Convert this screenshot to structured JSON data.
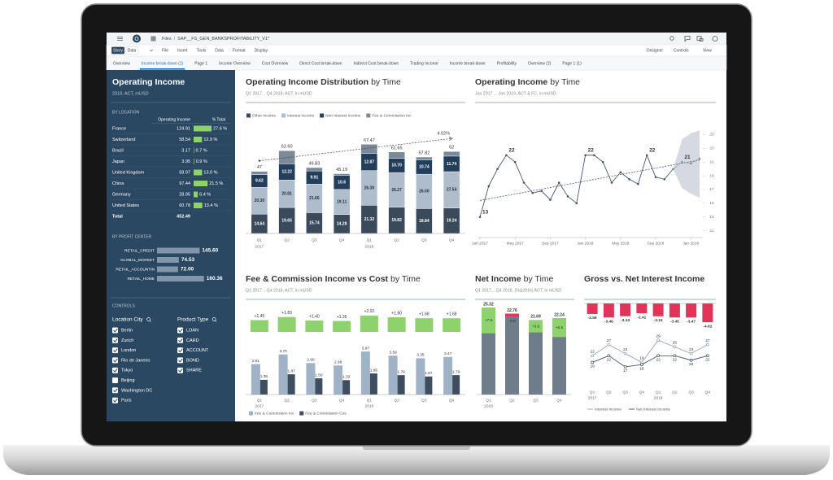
{
  "top_bar": {
    "breadcrumb": "Files",
    "separator": "/",
    "file_name": "SAP__FS_GEN_BANKSPROFITABILITY_V1*"
  },
  "menu": {
    "modes": [
      "Story",
      "Data"
    ],
    "items": [
      "File",
      "Insert",
      "Tools",
      "Data",
      "Format",
      "Display"
    ],
    "right_items": [
      "Designer",
      "Controls",
      "View"
    ]
  },
  "tabs": {
    "items": [
      "Overview",
      "Income break-down (1)",
      "Page 1",
      "Income Overview",
      "Cost Overview",
      "Direct Cost break-down",
      "Indirect Cost break-down",
      "Trading Income",
      "Income break-down",
      "Profitability",
      "Overview (2)",
      "Page 1 (1)"
    ],
    "active": 1
  },
  "left_panel": {
    "title": "Operating Income",
    "subtitle": "2018, ACT, mUSD",
    "location": {
      "heading": "BY LOCATION",
      "columns": [
        "Operating Income",
        "% Total"
      ],
      "rows": [
        {
          "name": "France",
          "value": "124.91",
          "pct": 27.6,
          "pct_label": "27.6 %"
        },
        {
          "name": "Switzerland",
          "value": "58.54",
          "pct": 12.9,
          "pct_label": "12.9 %"
        },
        {
          "name": "Brazil",
          "value": "3.17",
          "pct": 0.7,
          "pct_label": "0.7 %"
        },
        {
          "name": "Japan",
          "value": "3.95",
          "pct": 0.9,
          "pct_label": "0.9 %"
        },
        {
          "name": "United Kingdom",
          "value": "58.97",
          "pct": 13.0,
          "pct_label": "13.0 %"
        },
        {
          "name": "China",
          "value": "97.44",
          "pct": 21.5,
          "pct_label": "21.5 %"
        },
        {
          "name": "Germany",
          "value": "28.95",
          "pct": 6.4,
          "pct_label": "6.4 %"
        },
        {
          "name": "United States",
          "value": "60.78",
          "pct": 13.4,
          "pct_label": "13.4 %"
        }
      ],
      "total": {
        "name": "Total",
        "value": "452.49"
      }
    },
    "profit_center": {
      "heading": "BY PROFIT CENTER",
      "names": [
        "RETAIL_CREDIT",
        "GLOBAL_MARKET",
        "RETAIL_ACCOUNTIN",
        "RETAIL_HOME"
      ],
      "values": [
        145.6,
        74.53,
        72,
        160.36
      ],
      "value_labels": [
        "145.60",
        "74.53",
        "72.00",
        "160.36"
      ],
      "color": "#8195ab"
    },
    "controls": {
      "heading": "CONTROLS",
      "filters": [
        {
          "title": "Location City",
          "items": [
            "Berlin",
            "Zurich",
            "London",
            "Rio de Janeiro",
            "Tokyo",
            "Beijing",
            "Washington DC",
            "Paris"
          ],
          "checked": [
            true,
            true,
            true,
            true,
            true,
            false,
            true,
            true
          ]
        },
        {
          "title": "Product Type",
          "items": [
            "LOAN",
            "CARD",
            "ACCOUNT",
            "BOND",
            "SHARE"
          ],
          "checked": [
            true,
            true,
            true,
            true,
            true
          ]
        }
      ]
    }
  },
  "charts": [
    {
      "type": "stacked_bar",
      "title": "Operating Income Distribution",
      "title_suffix": "by Time",
      "subtitle": "Q1 2017... Q4 2018, ACT, in mUSD",
      "categories": [
        "Q1",
        "Q2",
        "Q3",
        "Q4",
        "Q1",
        "Q2",
        "Q3",
        "Q4"
      ],
      "groups": [
        "2017",
        null,
        null,
        null,
        "2018",
        null,
        null,
        null
      ],
      "series": [
        {
          "name": "Other Income",
          "color": "#3a4a5b",
          "values": [
            14.64,
            19.65,
            15.74,
            14.28,
            21.32,
            19.82,
            18.84,
            19.24
          ],
          "value_labels": [
            "14.64",
            "19.65",
            "15.74",
            "14.28",
            "21.32",
            "19.82",
            "18.84",
            "19.24"
          ]
        },
        {
          "name": "Interest Income",
          "color": "#aebccb",
          "values": [
            20.3,
            20.81,
            21.66,
            19.11,
            26.3,
            26.27,
            26.0,
            27.54
          ],
          "value_labels": [
            "20.30",
            "20.81",
            "21.66",
            "19.11",
            "26.30",
            "26.27",
            "26.00",
            "27.54"
          ]
        },
        {
          "name": "Non Interest Income",
          "color": "#233e5b",
          "values": [
            9.62,
            12.22,
            9.91,
            10.6,
            12.87,
            10.7,
            10.74,
            11.74
          ],
          "value_labels": [
            "9.62",
            "12.22",
            "9.91",
            "10.6",
            "12.87",
            "10.70",
            "10.74",
            "11.74"
          ]
        },
        {
          "name": "Fee & Commission Inc",
          "color": "#7b8999",
          "values": [
            2.44,
            9.92,
            2.52,
            1.2,
            6.98,
            4.86,
            2.24,
            3.48
          ]
        }
      ],
      "totals": [
        47,
        62.6,
        49.83,
        45.19,
        67.47,
        61.65,
        57.82,
        62
      ],
      "total_labels": [
        "47",
        "62.60",
        "49.83",
        "45.19",
        "67.47",
        "61.65",
        "57.82",
        "62"
      ],
      "trend_label": "4.02%",
      "ylim": [
        0,
        80
      ]
    },
    {
      "type": "line",
      "title": "Operating Income",
      "title_suffix": "by Time",
      "subtitle": "Jan 2017 ... Jan 2019, ACT & FC, in mUSD",
      "categories": [
        "Jan 2017",
        null,
        null,
        null,
        "May 2017",
        null,
        null,
        null,
        "Sep 2017",
        null,
        null,
        null,
        "Jan 2018",
        null,
        null,
        null,
        "May 2018",
        null,
        null,
        null,
        "Sep 2018",
        null,
        null,
        null,
        "Jan 2019",
        null
      ],
      "values": [
        13,
        17.5,
        20,
        22,
        21,
        18,
        16.5,
        16.8,
        15.5,
        18,
        16,
        15,
        22,
        22,
        21,
        18,
        19.5,
        18.5,
        17.8,
        22,
        18.8,
        18.5,
        20,
        null,
        null,
        null
      ],
      "show_labels": [
        true,
        false,
        false,
        true,
        false,
        false,
        false,
        false,
        false,
        false,
        false,
        false,
        true,
        false,
        false,
        false,
        false,
        false,
        false,
        true,
        false,
        false,
        false,
        false,
        false,
        false
      ],
      "color": "#4a5868",
      "forecast": {
        "values": [
          null,
          null,
          null,
          null,
          null,
          null,
          null,
          null,
          null,
          null,
          null,
          null,
          null,
          null,
          null,
          null,
          null,
          null,
          null,
          null,
          null,
          null,
          20,
          21,
          20.8,
          21.5
        ],
        "lower": [
          null,
          null,
          null,
          null,
          null,
          null,
          null,
          null,
          null,
          null,
          null,
          null,
          null,
          null,
          null,
          null,
          null,
          null,
          null,
          null,
          null,
          null,
          20,
          17.2,
          16.4,
          15.8
        ],
        "upper": [
          null,
          null,
          null,
          null,
          null,
          null,
          null,
          null,
          null,
          null,
          null,
          null,
          null,
          null,
          null,
          null,
          null,
          null,
          null,
          null,
          null,
          null,
          20,
          24.3,
          25.2,
          25.6
        ],
        "show_labels": [
          false,
          false,
          false,
          false,
          false,
          false,
          false,
          false,
          false,
          false,
          false,
          false,
          false,
          false,
          false,
          false,
          false,
          false,
          false,
          false,
          false,
          false,
          false,
          true,
          false,
          false
        ],
        "color": "#8a949e",
        "band_color": "#cfd4da"
      },
      "trend": [
        15.4,
        21.3
      ],
      "trend_color": "#3d5a80",
      "ylim": [
        10,
        26
      ],
      "yticks": [
        11,
        13,
        15,
        17,
        19,
        21,
        23,
        25
      ]
    },
    {
      "type": "variance_bar",
      "title": "Fee & Commission Income vs Cost",
      "title_suffix": "by Time",
      "subtitle": "Q1 2017... Q4 2018, ACT, in mUSD",
      "categories": [
        "Q1",
        "Q2",
        "Q3",
        "Q4",
        "Q1",
        "Q2",
        "Q3",
        "Q4"
      ],
      "groups": [
        "2017",
        null,
        null,
        null,
        "2018",
        null,
        null,
        null
      ],
      "difference": {
        "color": "#8ed26d",
        "values": [
          1.45,
          1.83,
          1.4,
          1.35,
          2.02,
          1.8,
          1.68,
          1.68
        ],
        "value_labels": [
          "+1.45",
          "+1.83",
          "+1.40",
          "+1.35",
          "+2.02",
          "+1.80",
          "+1.68",
          "+1.68"
        ]
      },
      "series": [
        {
          "name": "Fee & Commission Inc",
          "color": "#9fb2c6",
          "values": [
            2.81,
            3.7,
            2.9,
            2.68,
            3.97,
            3.59,
            3.35,
            3.47
          ],
          "value_labels": [
            "2.81",
            "3.70",
            "2.90",
            "2.68",
            "3.97",
            "3.59",
            "3.35",
            "3.47"
          ]
        },
        {
          "name": "Fee & Commission Cos",
          "color": "#3f4e5e",
          "values": [
            1.36,
            1.87,
            1.5,
            1.33,
            1.95,
            1.79,
            1.67,
            1.79
          ],
          "value_labels": [
            "1.36",
            "1.87",
            "1.50",
            "1.33",
            "1.95",
            "1.79",
            "1.67",
            "1.79"
          ]
        }
      ],
      "ylim": [
        0,
        4.5
      ],
      "difference_ylim": [
        0,
        2.5
      ]
    },
    {
      "type": "waterfall",
      "title": "Net Income",
      "title_suffix": "by Time",
      "subtitle": "Q1 2017... Q4 2018, (%Δ2016) ACT, in mUSD",
      "categories": [
        "Q1",
        "Q2",
        "Q3",
        "Q4"
      ],
      "groups": [
        "2018",
        null,
        null,
        null
      ],
      "values": [
        25.32,
        22.76,
        21.69,
        22.24
      ],
      "value_labels": [
        "25.32",
        "22.76",
        "21.69",
        "22.24"
      ],
      "deltas": [
        7.5,
        -0.8,
        3.6,
        5.5
      ],
      "delta_labels": [
        "+7.5",
        "-0.8",
        "+3.6",
        "+5.5"
      ],
      "color": "#6f7c8a",
      "positive_color": "#8ed26d",
      "negative_color": "#e0345a",
      "ylim": [
        0,
        27
      ]
    },
    {
      "type": "bar_line",
      "title": "Gross vs. Net Interest Income",
      "categories": [
        "Q1",
        "Q2",
        "Q3",
        "Q4",
        "Q1",
        "Q2",
        "Q3",
        "Q4"
      ],
      "groups": [
        "2017",
        null,
        null,
        null,
        "2018",
        null,
        null,
        null
      ],
      "bars": {
        "color": "#e0345a",
        "values": [
          -2.59,
          -3.46,
          -3.13,
          -2.41,
          -3.15,
          -3.45,
          -3.47,
          -4.62
        ]
      },
      "series": [
        {
          "name": "Interest Income",
          "color": "#9aa6b2",
          "values": [
            22,
            27,
            23,
            19,
            29,
            26,
            23,
            27
          ]
        },
        {
          "name": "Net Interest Income",
          "color": "#46546a",
          "values": [
            19,
            22,
            17,
            18,
            22,
            22,
            20,
            22
          ]
        }
      ],
      "bar_ylim": [
        -5,
        0
      ],
      "ylim": [
        10,
        32
      ]
    }
  ]
}
